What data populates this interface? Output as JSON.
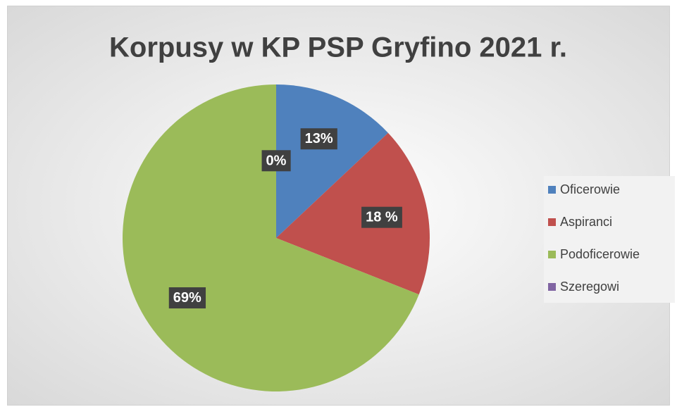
{
  "chart_data": {
    "type": "pie",
    "title": "Korpusy w KP PSP Gryfino 2021 r.",
    "categories": [
      "Oficerowie",
      "Aspiranci",
      "Podoficerowie",
      "Szeregowi"
    ],
    "values": [
      13,
      18,
      69,
      0
    ],
    "value_labels": [
      "13%",
      "18 %",
      "69%",
      "0%"
    ],
    "colors": [
      "#4f81bd",
      "#c0504d",
      "#9bbb59",
      "#8064a2"
    ],
    "legend": "right"
  }
}
